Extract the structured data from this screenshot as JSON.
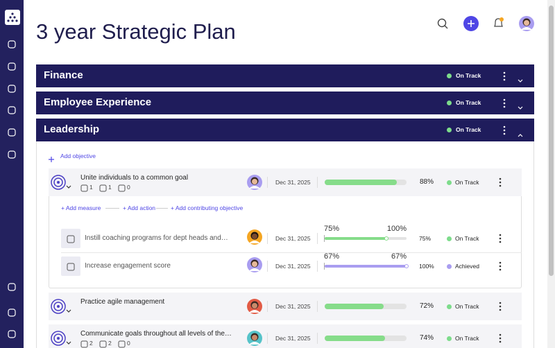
{
  "header": {
    "title": "3 year Strategic Plan"
  },
  "sections": [
    {
      "title": "Finance",
      "status": "On Track",
      "status_color": "#7ddc8b"
    },
    {
      "title": "Employee Experience",
      "status": "On Track",
      "status_color": "#7ddc8b"
    },
    {
      "title": "Leadership",
      "status": "On Track",
      "status_color": "#7ddc8b",
      "add_objective": "Add objective",
      "objectives": [
        {
          "title": "Unite individuals to a common goal",
          "measures": 1,
          "actions": 1,
          "contributing": 0,
          "date": "Dec 31, 2025",
          "progress": 88,
          "progress_label": "88%",
          "status": "On Track",
          "status_color": "#7ddc8b",
          "bar_color": "#86dc8a",
          "links": [
            "+ Add measure",
            "+ Add action",
            "+ Add contributing objective"
          ],
          "key_results": [
            {
              "title": "Instill coaching programs for dept heads and…",
              "date": "Dec 31, 2025",
              "current": 75,
              "current_label": "75%",
              "target": 100,
              "target_label": "100%",
              "progress": 75,
              "progress_label": "75%",
              "status": "On Track",
              "status_color": "#7ddc8b",
              "bar_color": "#86dc8a"
            },
            {
              "title": "Increase engagement score",
              "date": "Dec 31, 2025",
              "current": 67,
              "current_label": "67%",
              "target": 67,
              "target_label": "67%",
              "progress": 100,
              "progress_label": "100%",
              "status": "Achieved",
              "status_color": "#a99df0",
              "bar_color": "#a99df0"
            }
          ]
        },
        {
          "title": "Practice agile management",
          "date": "Dec 31, 2025",
          "progress": 72,
          "progress_label": "72%",
          "status": "On Track",
          "status_color": "#7ddc8b",
          "bar_color": "#86dc8a"
        },
        {
          "title": "Communicate goals throughout all levels of the…",
          "measures": 2,
          "actions": 2,
          "contributing": 0,
          "date": "Dec 31, 2025",
          "progress": 74,
          "progress_label": "74%",
          "status": "On Track",
          "status_color": "#7ddc8b",
          "bar_color": "#86dc8a"
        }
      ]
    }
  ]
}
